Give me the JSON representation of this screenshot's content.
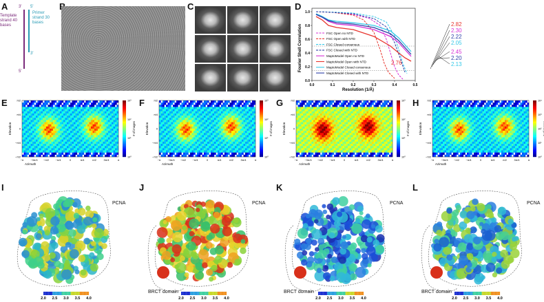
{
  "panels": {
    "A": {
      "label": "A",
      "strand_end_top": "3'",
      "strand_end_bottom": "5'",
      "template_text": "Template strand 40 bases",
      "primer_end_top": "5'",
      "primer_end_bottom": "3'",
      "primer_text": "Primer strand 30 bases",
      "colors": {
        "template": "#7a2a7a",
        "primer": "#2a9bb5"
      }
    },
    "B": {
      "label": "B"
    },
    "C": {
      "label": "C"
    },
    "D": {
      "label": "D",
      "ylabel": "Fourier Shell Correlation",
      "xlabel": "Resolution (1/Å)",
      "y_ticks": [
        "0.0",
        "0.2",
        "0.4",
        "0.6",
        "0.8",
        "1.0"
      ],
      "x_ticks": [
        "0.0",
        "0.1",
        "0.2",
        "0.3",
        "0.4",
        "0.5"
      ]
    },
    "E": {
      "label": "E"
    },
    "F": {
      "label": "F"
    },
    "G": {
      "label": "G"
    },
    "H": {
      "label": "H"
    },
    "I": {
      "label": "I",
      "pcna": "PCNA"
    },
    "J": {
      "label": "J",
      "pcna": "PCNA",
      "brct": "BRCT domain"
    },
    "K": {
      "label": "K",
      "pcna": "PCNA",
      "brct": "BRCT domain"
    },
    "L": {
      "label": "L",
      "pcna": "PCNA",
      "brct": "BRCT domain"
    }
  },
  "chart_data": [
    {
      "type": "line",
      "panel": "D",
      "xlabel": "Resolution (1/Å)",
      "ylabel": "Fourier Shell Correlation",
      "xlim": [
        0,
        0.5
      ],
      "ylim": [
        0,
        1.05
      ],
      "legend_position": "bottom-left",
      "series": [
        {
          "name": "FSC Open no NTD",
          "color": "#d62fd6",
          "style": "dashed",
          "x": [
            0.02,
            0.1,
            0.2,
            0.28,
            0.33,
            0.36,
            0.38,
            0.4,
            0.42,
            0.44
          ],
          "y": [
            1.0,
            0.99,
            0.96,
            0.9,
            0.8,
            0.6,
            0.4,
            0.2,
            0.08,
            0.02
          ]
        },
        {
          "name": "FSC Open with NTD",
          "color": "#e8352e",
          "style": "dashed",
          "x": [
            0.02,
            0.1,
            0.2,
            0.25,
            0.3,
            0.33,
            0.35,
            0.37,
            0.4
          ],
          "y": [
            1.0,
            0.99,
            0.95,
            0.88,
            0.7,
            0.45,
            0.25,
            0.12,
            0.03
          ]
        },
        {
          "name": "FSC Closed consensus",
          "color": "#35c9e8",
          "style": "dashed",
          "x": [
            0.02,
            0.1,
            0.2,
            0.3,
            0.36,
            0.4,
            0.42,
            0.44,
            0.46
          ],
          "y": [
            1.0,
            0.995,
            0.98,
            0.93,
            0.85,
            0.65,
            0.45,
            0.25,
            0.1
          ]
        },
        {
          "name": "FSC Closed with NTD",
          "color": "#2c3fa8",
          "style": "dashed",
          "x": [
            0.02,
            0.1,
            0.2,
            0.3,
            0.36,
            0.4,
            0.43,
            0.45
          ],
          "y": [
            1.0,
            0.99,
            0.97,
            0.9,
            0.78,
            0.55,
            0.3,
            0.12
          ]
        },
        {
          "name": "MaptoModel Open no NTD",
          "color": "#d62fd6",
          "style": "solid",
          "x": [
            0.02,
            0.05,
            0.08,
            0.12,
            0.2,
            0.3,
            0.38,
            0.42,
            0.45,
            0.48
          ],
          "y": [
            0.96,
            0.92,
            0.86,
            0.82,
            0.8,
            0.74,
            0.64,
            0.55,
            0.45,
            0.35
          ]
        },
        {
          "name": "MaptoModel Open with NTD",
          "color": "#e8352e",
          "style": "solid",
          "x": [
            0.02,
            0.05,
            0.08,
            0.12,
            0.2,
            0.3,
            0.38,
            0.42,
            0.45,
            0.48
          ],
          "y": [
            0.93,
            0.88,
            0.8,
            0.77,
            0.74,
            0.64,
            0.5,
            0.4,
            0.33,
            0.28
          ]
        },
        {
          "name": "MaptoModel Closed consensus",
          "color": "#35c9e8",
          "style": "solid",
          "x": [
            0.02,
            0.05,
            0.08,
            0.12,
            0.2,
            0.3,
            0.38,
            0.42,
            0.45,
            0.48
          ],
          "y": [
            0.97,
            0.93,
            0.88,
            0.86,
            0.84,
            0.8,
            0.72,
            0.62,
            0.52,
            0.42
          ]
        },
        {
          "name": "MaptoModel Closed with NTD",
          "color": "#2c3fa8",
          "style": "solid",
          "x": [
            0.02,
            0.05,
            0.08,
            0.12,
            0.2,
            0.3,
            0.38,
            0.42,
            0.45,
            0.48
          ],
          "y": [
            0.96,
            0.92,
            0.87,
            0.84,
            0.82,
            0.77,
            0.68,
            0.58,
            0.48,
            0.38
          ]
        }
      ],
      "annotations": [
        {
          "text": "2.82",
          "color": "#e8352e"
        },
        {
          "text": "2.30",
          "color": "#d62fd6"
        },
        {
          "text": "2.22",
          "color": "#2c3fa8"
        },
        {
          "text": "2.05",
          "color": "#35c9e8"
        },
        {
          "text": "2.45",
          "color": "#d62fd6"
        },
        {
          "text": "2.20",
          "color": "#2c3fa8"
        },
        {
          "text": "2.13",
          "color": "#35c9e8"
        },
        {
          "text": "2.76",
          "color": "#e8352e"
        }
      ]
    },
    {
      "type": "heatmap",
      "panel": "E",
      "xlabel": "Azimuth",
      "ylabel": "Elevation",
      "x_ticks": [
        "−π",
        "−3π/4",
        "−π/2",
        "−π/4",
        "0",
        "π/4",
        "π/2",
        "3π/4",
        "π"
      ],
      "y_ticks": [
        "−π/2",
        "−π/4",
        "0",
        "π/4",
        "π/2"
      ],
      "colorbar_label": "# of images",
      "colorbar_ticks": [
        "10⁰",
        "10¹",
        "10²",
        "10³"
      ]
    },
    {
      "type": "heatmap",
      "panel": "F",
      "xlabel": "Azimuth",
      "ylabel": "Elevation",
      "x_ticks": [
        "−π",
        "−3π/4",
        "−π/2",
        "−π/4",
        "0",
        "π/4",
        "π/2",
        "3π/4",
        "π"
      ],
      "y_ticks": [
        "−π/2",
        "−π/4",
        "0",
        "π/4",
        "π/2"
      ],
      "colorbar_label": "# of images",
      "colorbar_ticks": [
        "10⁰",
        "10¹",
        "10²",
        "10³"
      ]
    },
    {
      "type": "heatmap",
      "panel": "G",
      "xlabel": "Azimuth",
      "ylabel": "Elevation",
      "x_ticks": [
        "−π",
        "−3π/4",
        "−π/2",
        "−π/4",
        "0",
        "π/4",
        "π/2",
        "3π/4",
        "π"
      ],
      "y_ticks": [
        "−π/2",
        "−π/4",
        "0",
        "π/4",
        "π/2"
      ],
      "colorbar_label": "# of images",
      "colorbar_ticks": [
        "10⁰",
        "10¹",
        "10²",
        "10³"
      ]
    },
    {
      "type": "heatmap",
      "panel": "H",
      "xlabel": "Azimuth",
      "ylabel": "Elevation",
      "x_ticks": [
        "−π",
        "−3π/4",
        "−π/2",
        "−π/4",
        "0",
        "π/4",
        "π/2",
        "3π/4",
        "π"
      ],
      "y_ticks": [
        "−π/2",
        "−π/4",
        "0",
        "π/4",
        "π/2"
      ],
      "colorbar_label": "# of images",
      "colorbar_ticks": [
        "10⁰",
        "10¹",
        "10²",
        "10³",
        "10⁴"
      ]
    }
  ],
  "colorbar_local_res": {
    "ticks": [
      "2.0",
      "2.5",
      "3.0",
      "3.5",
      "4.0"
    ]
  }
}
